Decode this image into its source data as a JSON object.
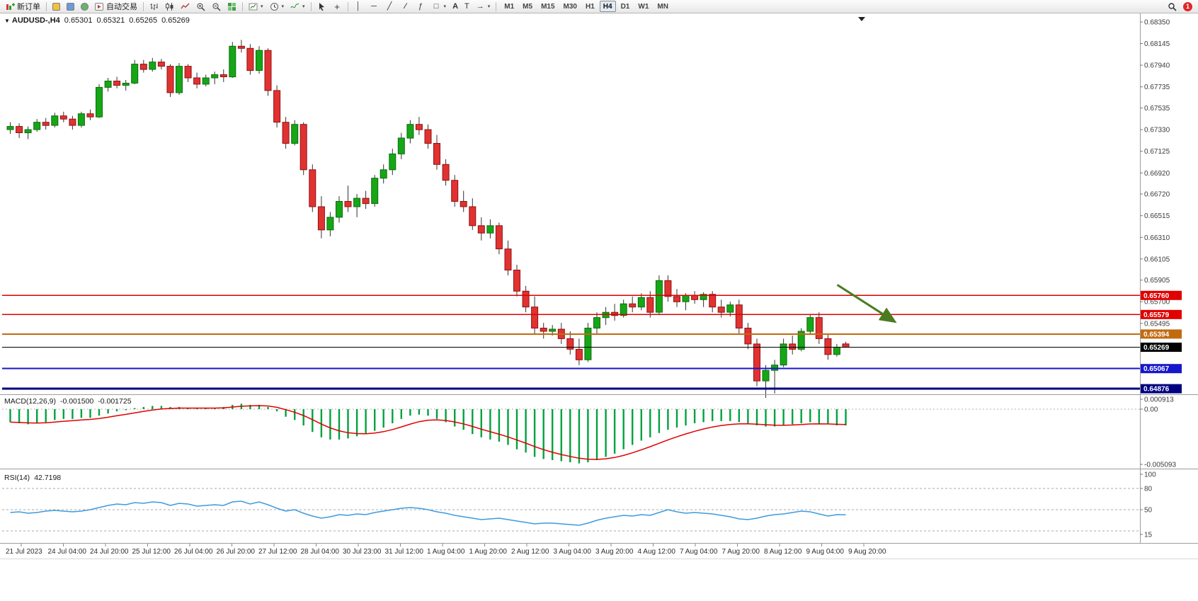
{
  "toolbar": {
    "new_order_label": "新订单",
    "auto_trading_label": "自动交易",
    "text_tool_label": "A",
    "label_tool_label": "T",
    "timeframes": [
      "M1",
      "M5",
      "M15",
      "M30",
      "H1",
      "H4",
      "D1",
      "W1",
      "MN"
    ],
    "active_timeframe": "H4",
    "notification_count": "1"
  },
  "chart": {
    "symbol": "AUDUSD-,H4",
    "open": "0.65301",
    "high": "0.65321",
    "low": "0.65265",
    "close": "0.65269"
  },
  "macd": {
    "name": "MACD(12,26,9)",
    "value_main": "-0.001500",
    "value_signal": "-0.001725",
    "scale": [
      "0.000913",
      "0.00",
      "-0.005093"
    ]
  },
  "rsi": {
    "name": "RSI(14)",
    "value": "42.7198",
    "scale": [
      "100",
      "80",
      "50",
      "15"
    ],
    "levels": [
      80,
      50,
      20
    ]
  },
  "price_scale": {
    "ticks": [
      "0.68350",
      "0.68145",
      "0.67940",
      "0.67735",
      "0.67535",
      "0.67330",
      "0.67125",
      "0.66920",
      "0.66720",
      "0.66515",
      "0.66310",
      "0.66105",
      "0.65905",
      "0.65700",
      "0.65495"
    ]
  },
  "time_axis": {
    "labels": [
      "21 Jul 2023",
      "24 Jul 04:00",
      "24 Jul 20:00",
      "25 Jul 12:00",
      "26 Jul 04:00",
      "26 Jul 20:00",
      "27 Jul 12:00",
      "28 Jul 04:00",
      "30 Jul 23:00",
      "31 Jul 12:00",
      "1 Aug 04:00",
      "1 Aug 20:00",
      "2 Aug 12:00",
      "3 Aug 04:00",
      "3 Aug 20:00",
      "4 Aug 12:00",
      "7 Aug 04:00",
      "7 Aug 20:00",
      "8 Aug 12:00",
      "9 Aug 04:00",
      "9 Aug 20:00"
    ]
  },
  "chart_data": {
    "type": "candlestick",
    "symbol": "AUDUSD",
    "timeframe": "H4",
    "ylim": [
      0.6483,
      0.6839
    ],
    "colors": {
      "bull": "#17a617",
      "bull_edge": "#0b6e0b",
      "bear": "#e13232",
      "bear_edge": "#8f1212",
      "wick": "#333333",
      "macd_histogram": "#00a23e",
      "macd_signal": "#e00000",
      "rsi_line": "#3d9bdc",
      "arrow": "#4a7c1f"
    },
    "candles": [
      [
        0.6733,
        0.674,
        0.6729,
        0.6736
      ],
      [
        0.6736,
        0.6739,
        0.6725,
        0.673
      ],
      [
        0.673,
        0.6736,
        0.6724,
        0.6733
      ],
      [
        0.6733,
        0.6743,
        0.6731,
        0.674
      ],
      [
        0.674,
        0.6744,
        0.6733,
        0.6737
      ],
      [
        0.6737,
        0.6749,
        0.6735,
        0.6746
      ],
      [
        0.6746,
        0.675,
        0.674,
        0.6743
      ],
      [
        0.6743,
        0.6746,
        0.6733,
        0.6737
      ],
      [
        0.6737,
        0.675,
        0.6735,
        0.6748
      ],
      [
        0.6748,
        0.6752,
        0.6742,
        0.6745
      ],
      [
        0.6745,
        0.6776,
        0.6744,
        0.6773
      ],
      [
        0.6773,
        0.6782,
        0.6769,
        0.6779
      ],
      [
        0.6779,
        0.6783,
        0.6772,
        0.6775
      ],
      [
        0.6775,
        0.678,
        0.677,
        0.6777
      ],
      [
        0.6777,
        0.6799,
        0.6776,
        0.6795
      ],
      [
        0.6795,
        0.6799,
        0.6787,
        0.679
      ],
      [
        0.679,
        0.6801,
        0.6788,
        0.6797
      ],
      [
        0.6797,
        0.68,
        0.679,
        0.6793
      ],
      [
        0.6793,
        0.6795,
        0.6764,
        0.6768
      ],
      [
        0.6768,
        0.6796,
        0.6766,
        0.6793
      ],
      [
        0.6793,
        0.6795,
        0.6778,
        0.6782
      ],
      [
        0.6782,
        0.6787,
        0.6772,
        0.6776
      ],
      [
        0.6776,
        0.6785,
        0.6774,
        0.6782
      ],
      [
        0.6782,
        0.6788,
        0.6776,
        0.6785
      ],
      [
        0.6785,
        0.679,
        0.6778,
        0.6783
      ],
      [
        0.6783,
        0.6816,
        0.6782,
        0.6812
      ],
      [
        0.6812,
        0.6818,
        0.6806,
        0.681
      ],
      [
        0.681,
        0.6814,
        0.6785,
        0.6789
      ],
      [
        0.6789,
        0.6812,
        0.6786,
        0.6808
      ],
      [
        0.6808,
        0.681,
        0.6765,
        0.677
      ],
      [
        0.677,
        0.6775,
        0.6735,
        0.674
      ],
      [
        0.674,
        0.6745,
        0.6715,
        0.672
      ],
      [
        0.672,
        0.6742,
        0.6718,
        0.6738
      ],
      [
        0.6738,
        0.674,
        0.669,
        0.6695
      ],
      [
        0.6695,
        0.67,
        0.6655,
        0.666
      ],
      [
        0.666,
        0.667,
        0.663,
        0.6638
      ],
      [
        0.6638,
        0.6655,
        0.6632,
        0.665
      ],
      [
        0.665,
        0.667,
        0.6645,
        0.6665
      ],
      [
        0.6665,
        0.668,
        0.6655,
        0.666
      ],
      [
        0.666,
        0.6672,
        0.665,
        0.6668
      ],
      [
        0.6668,
        0.6675,
        0.6658,
        0.6663
      ],
      [
        0.6663,
        0.669,
        0.666,
        0.6687
      ],
      [
        0.6687,
        0.67,
        0.6682,
        0.6695
      ],
      [
        0.6695,
        0.6715,
        0.669,
        0.671
      ],
      [
        0.671,
        0.673,
        0.6705,
        0.6725
      ],
      [
        0.6725,
        0.6742,
        0.672,
        0.6738
      ],
      [
        0.6738,
        0.6745,
        0.6728,
        0.6733
      ],
      [
        0.6733,
        0.6738,
        0.6715,
        0.672
      ],
      [
        0.672,
        0.6728,
        0.6695,
        0.67
      ],
      [
        0.67,
        0.6705,
        0.668,
        0.6685
      ],
      [
        0.6685,
        0.669,
        0.666,
        0.6665
      ],
      [
        0.6665,
        0.6675,
        0.6655,
        0.666
      ],
      [
        0.666,
        0.6668,
        0.6638,
        0.6642
      ],
      [
        0.6642,
        0.665,
        0.6628,
        0.6635
      ],
      [
        0.6635,
        0.6648,
        0.663,
        0.6642
      ],
      [
        0.6642,
        0.6645,
        0.6615,
        0.662
      ],
      [
        0.662,
        0.6628,
        0.6595,
        0.66
      ],
      [
        0.66,
        0.6605,
        0.6575,
        0.658
      ],
      [
        0.658,
        0.6585,
        0.656,
        0.6565
      ],
      [
        0.6565,
        0.6575,
        0.654,
        0.6545
      ],
      [
        0.6545,
        0.655,
        0.6535,
        0.6542
      ],
      [
        0.6542,
        0.6548,
        0.6538,
        0.6544
      ],
      [
        0.6544,
        0.655,
        0.653,
        0.6535
      ],
      [
        0.6535,
        0.6542,
        0.652,
        0.6525
      ],
      [
        0.6525,
        0.6535,
        0.651,
        0.6515
      ],
      [
        0.6515,
        0.655,
        0.6513,
        0.6545
      ],
      [
        0.6545,
        0.656,
        0.654,
        0.6555
      ],
      [
        0.6555,
        0.6565,
        0.6548,
        0.656
      ],
      [
        0.656,
        0.6568,
        0.6552,
        0.6557
      ],
      [
        0.6557,
        0.6572,
        0.6555,
        0.6568
      ],
      [
        0.6568,
        0.6575,
        0.656,
        0.6565
      ],
      [
        0.6565,
        0.6578,
        0.6562,
        0.6574
      ],
      [
        0.6574,
        0.658,
        0.6555,
        0.656
      ],
      [
        0.656,
        0.6595,
        0.6558,
        0.659
      ],
      [
        0.659,
        0.6595,
        0.657,
        0.6575
      ],
      [
        0.6575,
        0.6582,
        0.6565,
        0.657
      ],
      [
        0.657,
        0.6578,
        0.6562,
        0.6576
      ],
      [
        0.6576,
        0.658,
        0.6568,
        0.6572
      ],
      [
        0.6572,
        0.6579,
        0.6565,
        0.6577
      ],
      [
        0.6577,
        0.658,
        0.656,
        0.6565
      ],
      [
        0.6565,
        0.6572,
        0.6555,
        0.656
      ],
      [
        0.656,
        0.657,
        0.6556,
        0.6567
      ],
      [
        0.6567,
        0.6572,
        0.654,
        0.6545
      ],
      [
        0.6545,
        0.655,
        0.6525,
        0.653
      ],
      [
        0.653,
        0.6535,
        0.649,
        0.6495
      ],
      [
        0.6495,
        0.651,
        0.6479,
        0.6505
      ],
      [
        0.6505,
        0.6515,
        0.6483,
        0.651
      ],
      [
        0.651,
        0.6535,
        0.6508,
        0.653
      ],
      [
        0.653,
        0.6538,
        0.652,
        0.6525
      ],
      [
        0.6525,
        0.6545,
        0.6523,
        0.6542
      ],
      [
        0.6542,
        0.6558,
        0.654,
        0.6555
      ],
      [
        0.6555,
        0.656,
        0.653,
        0.6535
      ],
      [
        0.6535,
        0.654,
        0.6515,
        0.652
      ],
      [
        0.652,
        0.653,
        0.6518,
        0.6527
      ],
      [
        0.65301,
        0.65321,
        0.65265,
        0.65269
      ]
    ],
    "hlines": [
      {
        "price": 0.6576,
        "label": "0.65760",
        "color": "#e00000",
        "width": 1.4
      },
      {
        "price": 0.65579,
        "label": "0.65579",
        "color": "#e00000",
        "width": 1.4
      },
      {
        "price": 0.65394,
        "label": "0.65394",
        "color": "#c26a10",
        "width": 1.8
      },
      {
        "price": 0.65269,
        "label": "0.65269",
        "color": "#000000",
        "width": 1
      },
      {
        "price": 0.65067,
        "label": "0.65067",
        "color": "#1616cc",
        "width": 2
      },
      {
        "price": 0.64876,
        "label": "0.64876",
        "color": "#000080",
        "width": 3
      }
    ],
    "arrow": {
      "i1": 93.4,
      "p1": 0.6586,
      "i2": 99.8,
      "p2": 0.65515
    },
    "macd_histogram": [
      -0.0012,
      -0.0013,
      -0.0014,
      -0.0013,
      -0.0012,
      -0.001,
      -0.0009,
      -0.0009,
      -0.0008,
      -0.0008,
      -0.0006,
      -0.0004,
      -0.0002,
      -0.0001,
      0.0001,
      0.0002,
      0.0003,
      0.0003,
      0.0002,
      0.0002,
      0.0001,
      0.0001,
      0.0001,
      0.0001,
      0.0002,
      0.0004,
      0.0005,
      0.0004,
      0.0004,
      0.0002,
      -0.0002,
      -0.0007,
      -0.001,
      -0.0015,
      -0.0021,
      -0.0026,
      -0.0028,
      -0.0028,
      -0.0027,
      -0.0025,
      -0.0023,
      -0.002,
      -0.0017,
      -0.0013,
      -0.0009,
      -0.0006,
      -0.0005,
      -0.0006,
      -0.0009,
      -0.0012,
      -0.0016,
      -0.0019,
      -0.0023,
      -0.0026,
      -0.0028,
      -0.003,
      -0.0033,
      -0.0037,
      -0.004,
      -0.0044,
      -0.0046,
      -0.0047,
      -0.0048,
      -0.0049,
      -0.005,
      -0.0049,
      -0.0047,
      -0.0044,
      -0.0041,
      -0.0037,
      -0.0033,
      -0.0029,
      -0.0026,
      -0.0022,
      -0.0019,
      -0.0017,
      -0.0015,
      -0.0013,
      -0.0012,
      -0.0011,
      -0.0011,
      -0.0011,
      -0.0012,
      -0.0013,
      -0.0015,
      -0.0016,
      -0.0016,
      -0.0015,
      -0.0014,
      -0.0013,
      -0.0012,
      -0.0013,
      -0.0014,
      -0.0015,
      -0.0015
    ],
    "rsi": [
      46,
      47,
      45,
      46,
      48,
      49,
      48,
      47,
      48,
      50,
      53,
      56,
      58,
      57,
      60,
      59,
      61,
      60,
      56,
      59,
      58,
      55,
      56,
      57,
      56,
      61,
      62,
      58,
      61,
      57,
      52,
      48,
      50,
      45,
      41,
      38,
      40,
      43,
      42,
      44,
      43,
      46,
      48,
      50,
      52,
      53,
      52,
      50,
      47,
      45,
      42,
      40,
      38,
      36,
      37,
      38,
      36,
      34,
      32,
      30,
      31,
      31,
      30,
      29,
      28,
      31,
      35,
      38,
      40,
      42,
      41,
      43,
      42,
      46,
      50,
      47,
      45,
      46,
      45,
      44,
      42,
      40,
      37,
      36,
      38,
      41,
      43,
      44,
      46,
      48,
      47,
      44,
      41,
      43,
      42.7
    ]
  }
}
